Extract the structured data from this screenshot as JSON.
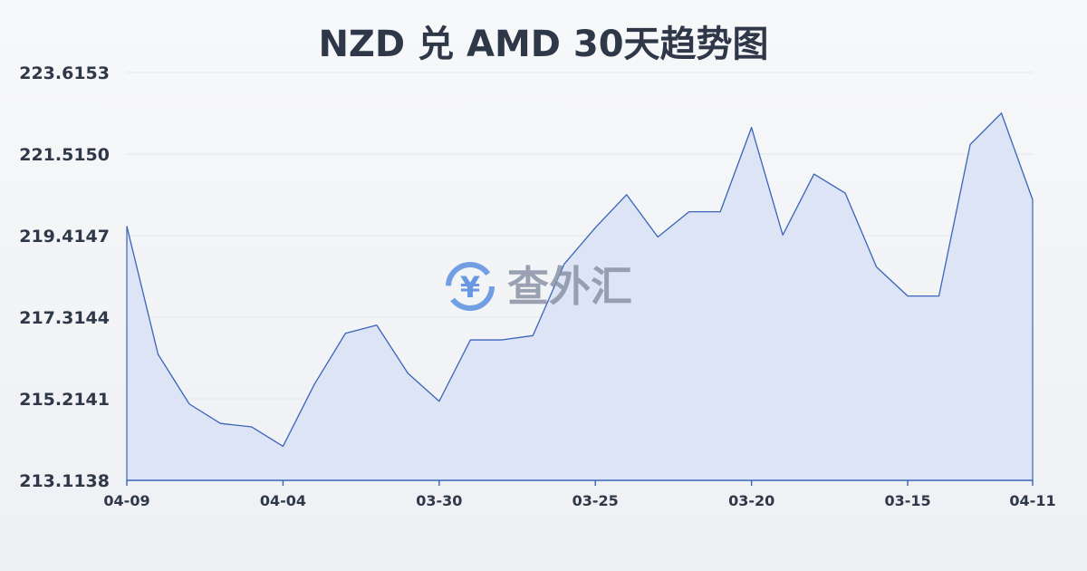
{
  "colors": {
    "line": "#3a64b8",
    "area": "#dbe3f6",
    "grid": "#e3e6ec",
    "text": "#2f3848",
    "watermark_icon": "#5b8fe0"
  },
  "watermark": {
    "icon": "yen-exchange-icon",
    "text": "查外汇"
  },
  "chart_data": {
    "type": "area",
    "title": "NZD 兑 AMD 30天趋势图",
    "xlabel": "",
    "ylabel": "",
    "ylim": [
      213.1138,
      223.6153
    ],
    "yticks": [
      "223.6153",
      "221.5150",
      "219.4147",
      "217.3144",
      "215.2141",
      "213.1138"
    ],
    "xticks": [
      "04-09",
      "04-04",
      "03-30",
      "03-25",
      "03-20",
      "03-15",
      "04-11"
    ],
    "xtick_index": [
      0,
      5,
      10,
      15,
      20,
      25,
      29
    ],
    "grid": true,
    "legend": "none",
    "values": [
      219.66,
      216.36,
      215.08,
      214.58,
      214.49,
      213.99,
      215.58,
      216.9,
      217.11,
      215.87,
      215.15,
      216.73,
      216.73,
      216.84,
      218.68,
      219.62,
      220.47,
      219.38,
      220.03,
      220.03,
      222.2,
      219.43,
      221.0,
      220.51,
      218.61,
      217.86,
      217.86,
      221.76,
      222.57,
      220.34
    ]
  }
}
